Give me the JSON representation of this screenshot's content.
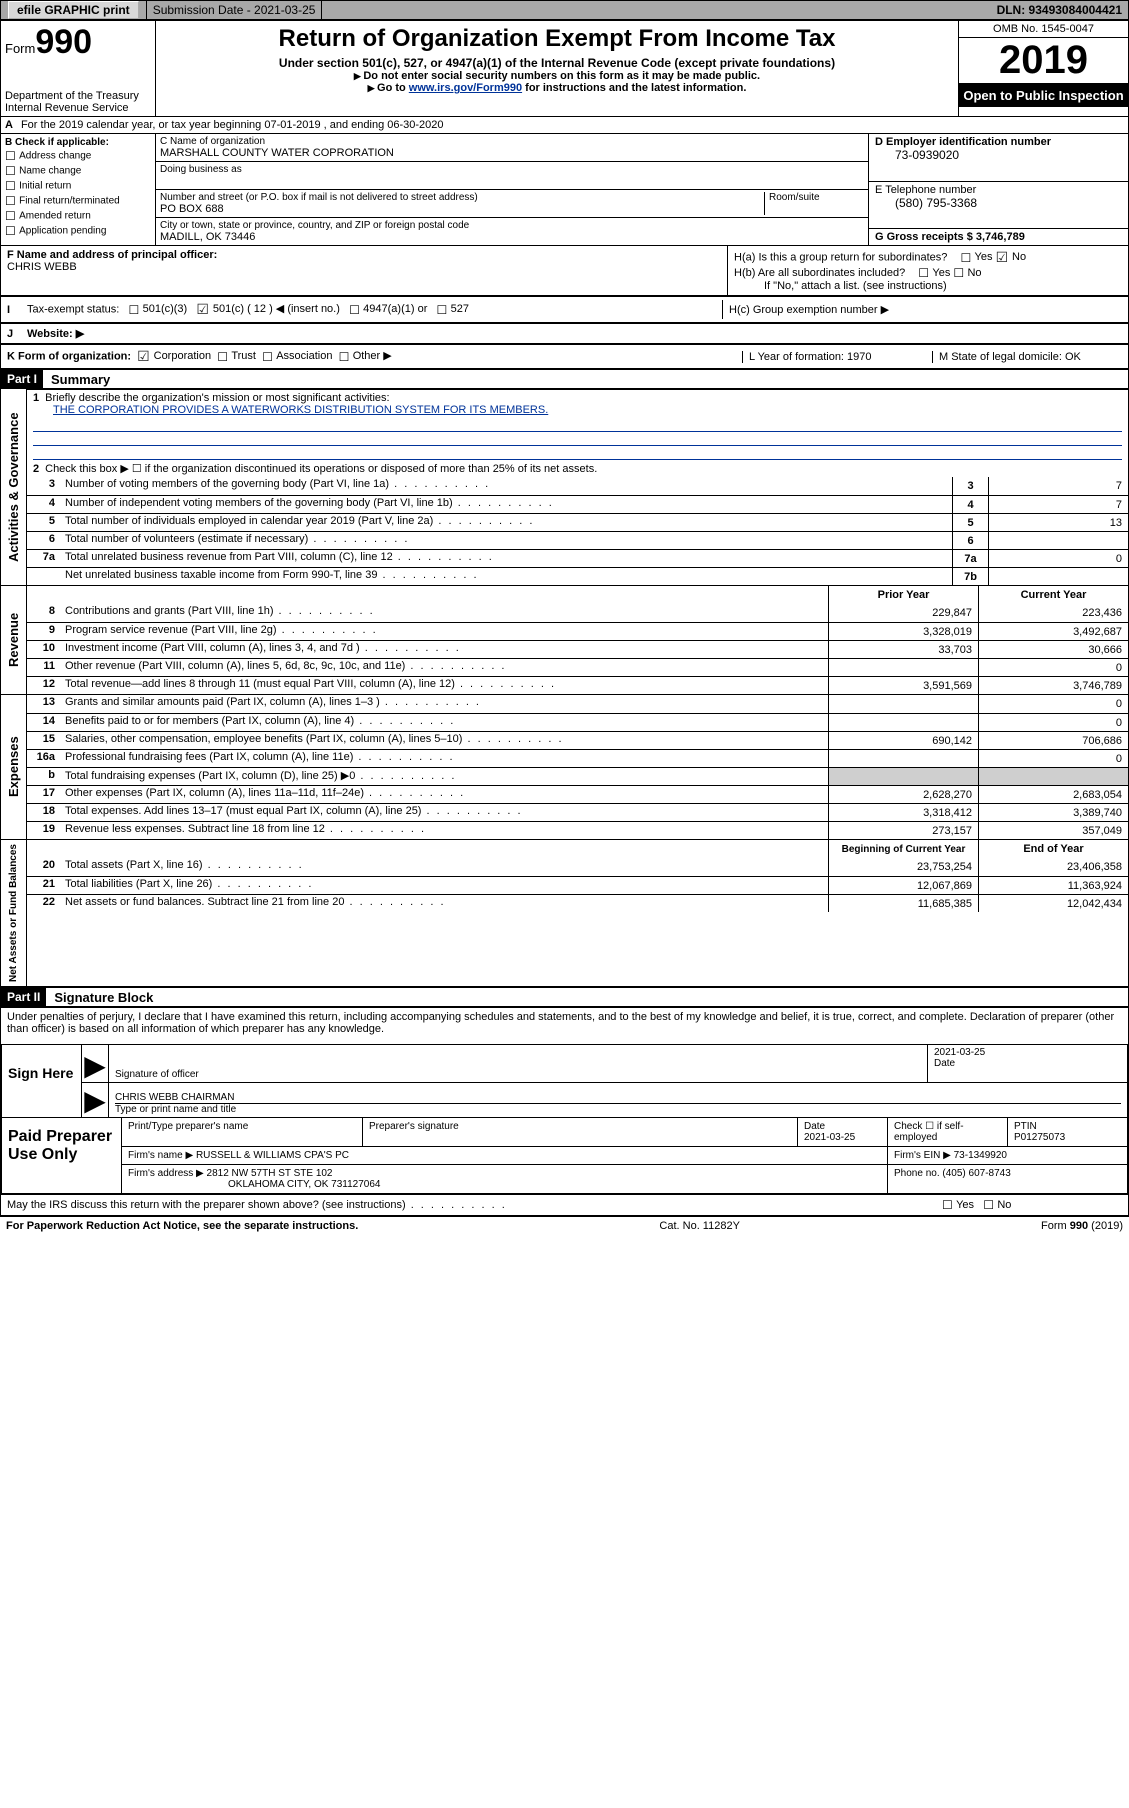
{
  "topbar": {
    "efile": "efile GRAPHIC print",
    "sub_label": "Submission Date - 2021-03-25",
    "dln": "DLN: 93493084004421"
  },
  "header": {
    "form_label": "Form",
    "form_no": "990",
    "dept": "Department of the Treasury\nInternal Revenue Service",
    "title": "Return of Organization Exempt From Income Tax",
    "sub1": "Under section 501(c), 527, or 4947(a)(1) of the Internal Revenue Code (except private foundations)",
    "sub2": "Do not enter social security numbers on this form as it may be made public.",
    "sub3_pre": "Go to ",
    "sub3_link": "www.irs.gov/Form990",
    "sub3_post": " for instructions and the latest information.",
    "omb": "OMB No. 1545-0047",
    "year": "2019",
    "open": "Open to Public Inspection"
  },
  "row_a": "For the 2019 calendar year, or tax year beginning 07-01-2019    , and ending 06-30-2020",
  "col_b": {
    "title": "B Check if applicable:",
    "items": [
      "Address change",
      "Name change",
      "Initial return",
      "Final return/terminated",
      "Amended return",
      "Application pending"
    ]
  },
  "col_c": {
    "name_lbl": "C Name of organization",
    "name": "MARSHALL COUNTY WATER COPRORATION",
    "dba_lbl": "Doing business as",
    "addr_lbl": "Number and street (or P.O. box if mail is not delivered to street address)",
    "room_lbl": "Room/suite",
    "addr": "PO BOX 688",
    "city_lbl": "City or town, state or province, country, and ZIP or foreign postal code",
    "city": "MADILL, OK   73446"
  },
  "col_d": {
    "d_lbl": "D Employer identification number",
    "d_val": "73-0939020",
    "e_lbl": "E Telephone number",
    "e_val": "(580) 795-3368",
    "g_lbl": "G Gross receipts $ 3,746,789"
  },
  "fgh": {
    "f_lbl": "F Name and address of principal officer:",
    "f_name": "CHRIS WEBB",
    "ha": "H(a)  Is this a group return for subordinates?",
    "hb": "H(b)  Are all subordinates included?",
    "h_note": "If \"No,\" attach a list. (see instructions)",
    "hc": "H(c)  Group exemption number ▶",
    "yes": "Yes",
    "no": "No"
  },
  "row_i": {
    "lbl": "Tax-exempt status:",
    "opt1": "501(c)(3)",
    "opt2": "501(c) ( 12 ) ◀ (insert no.)",
    "opt3": "4947(a)(1) or",
    "opt4": "527"
  },
  "row_j": "Website: ▶",
  "row_k": {
    "lbl": "K Form of organization:",
    "corp": "Corporation",
    "trust": "Trust",
    "assoc": "Association",
    "other": "Other ▶",
    "l": "L Year of formation: 1970",
    "m": "M State of legal domicile: OK"
  },
  "part1": {
    "hdr": "Part I",
    "title": "Summary",
    "line1": "Briefly describe the organization's mission or most significant activities:",
    "mission": "THE CORPORATION PROVIDES A WATERWORKS DISTRIBUTION SYSTEM FOR ITS MEMBERS.",
    "line2": "Check this box ▶ ☐  if the organization discontinued its operations or disposed of more than 25% of its net assets.",
    "gov_rows": [
      {
        "n": "3",
        "desc": "Number of voting members of the governing body (Part VI, line 1a)",
        "lbl": "3",
        "val": "7"
      },
      {
        "n": "4",
        "desc": "Number of independent voting members of the governing body (Part VI, line 1b)",
        "lbl": "4",
        "val": "7"
      },
      {
        "n": "5",
        "desc": "Total number of individuals employed in calendar year 2019 (Part V, line 2a)",
        "lbl": "5",
        "val": "13"
      },
      {
        "n": "6",
        "desc": "Total number of volunteers (estimate if necessary)",
        "lbl": "6",
        "val": ""
      },
      {
        "n": "7a",
        "desc": "Total unrelated business revenue from Part VIII, column (C), line 12",
        "lbl": "7a",
        "val": "0"
      },
      {
        "n": "",
        "desc": "Net unrelated business taxable income from Form 990-T, line 39",
        "lbl": "7b",
        "val": ""
      }
    ],
    "col_hdr_prior": "Prior Year",
    "col_hdr_curr": "Current Year",
    "rev_rows": [
      {
        "n": "8",
        "desc": "Contributions and grants (Part VIII, line 1h)",
        "p": "229,847",
        "c": "223,436"
      },
      {
        "n": "9",
        "desc": "Program service revenue (Part VIII, line 2g)",
        "p": "3,328,019",
        "c": "3,492,687"
      },
      {
        "n": "10",
        "desc": "Investment income (Part VIII, column (A), lines 3, 4, and 7d )",
        "p": "33,703",
        "c": "30,666"
      },
      {
        "n": "11",
        "desc": "Other revenue (Part VIII, column (A), lines 5, 6d, 8c, 9c, 10c, and 11e)",
        "p": "",
        "c": "0"
      },
      {
        "n": "12",
        "desc": "Total revenue—add lines 8 through 11 (must equal Part VIII, column (A), line 12)",
        "p": "3,591,569",
        "c": "3,746,789"
      }
    ],
    "exp_rows": [
      {
        "n": "13",
        "desc": "Grants and similar amounts paid (Part IX, column (A), lines 1–3 )",
        "p": "",
        "c": "0"
      },
      {
        "n": "14",
        "desc": "Benefits paid to or for members (Part IX, column (A), line 4)",
        "p": "",
        "c": "0"
      },
      {
        "n": "15",
        "desc": "Salaries, other compensation, employee benefits (Part IX, column (A), lines 5–10)",
        "p": "690,142",
        "c": "706,686"
      },
      {
        "n": "16a",
        "desc": "Professional fundraising fees (Part IX, column (A), line 11e)",
        "p": "",
        "c": "0"
      },
      {
        "n": "b",
        "desc": "Total fundraising expenses (Part IX, column (D), line 25) ▶0",
        "p": "gray",
        "c": "gray"
      },
      {
        "n": "17",
        "desc": "Other expenses (Part IX, column (A), lines 11a–11d, 11f–24e)",
        "p": "2,628,270",
        "c": "2,683,054"
      },
      {
        "n": "18",
        "desc": "Total expenses. Add lines 13–17 (must equal Part IX, column (A), line 25)",
        "p": "3,318,412",
        "c": "3,389,740"
      },
      {
        "n": "19",
        "desc": "Revenue less expenses. Subtract line 18 from line 12",
        "p": "273,157",
        "c": "357,049"
      }
    ],
    "col_hdr_beg": "Beginning of Current Year",
    "col_hdr_end": "End of Year",
    "net_rows": [
      {
        "n": "20",
        "desc": "Total assets (Part X, line 16)",
        "p": "23,753,254",
        "c": "23,406,358"
      },
      {
        "n": "21",
        "desc": "Total liabilities (Part X, line 26)",
        "p": "12,067,869",
        "c": "11,363,924"
      },
      {
        "n": "22",
        "desc": "Net assets or fund balances. Subtract line 21 from line 20",
        "p": "11,685,385",
        "c": "12,042,434"
      }
    ],
    "vtab_gov": "Activities & Governance",
    "vtab_rev": "Revenue",
    "vtab_exp": "Expenses",
    "vtab_net": "Net Assets or Fund Balances"
  },
  "part2": {
    "hdr": "Part II",
    "title": "Signature Block",
    "perjury": "Under penalties of perjury, I declare that I have examined this return, including accompanying schedules and statements, and to the best of my knowledge and belief, it is true, correct, and complete. Declaration of preparer (other than officer) is based on all information of which preparer has any knowledge."
  },
  "sign": {
    "here": "Sign Here",
    "sig_officer": "Signature of officer",
    "date": "Date",
    "date_val": "2021-03-25",
    "name": "CHRIS WEBB  CHAIRMAN",
    "type_lbl": "Type or print name and title"
  },
  "paid": {
    "lbl": "Paid Preparer Use Only",
    "h1": "Print/Type preparer's name",
    "h2": "Preparer's signature",
    "h3": "Date",
    "h3v": "2021-03-25",
    "h4": "Check ☐ if self-employed",
    "h5": "PTIN",
    "h5v": "P01275073",
    "firm_name_lbl": "Firm's name    ▶",
    "firm_name": "RUSSELL & WILLIAMS CPA'S PC",
    "firm_ein_lbl": "Firm's EIN ▶",
    "firm_ein": "73-1349920",
    "firm_addr_lbl": "Firm's address ▶",
    "firm_addr1": "2812 NW 57TH ST STE 102",
    "firm_addr2": "OKLAHOMA CITY, OK   731127064",
    "phone_lbl": "Phone no.",
    "phone": "(405) 607-8743"
  },
  "footer": {
    "discuss": "May the IRS discuss this return with the preparer shown above? (see instructions)",
    "paperwork": "For Paperwork Reduction Act Notice, see the separate instructions.",
    "cat": "Cat. No. 11282Y",
    "form": "Form 990 (2019)"
  }
}
